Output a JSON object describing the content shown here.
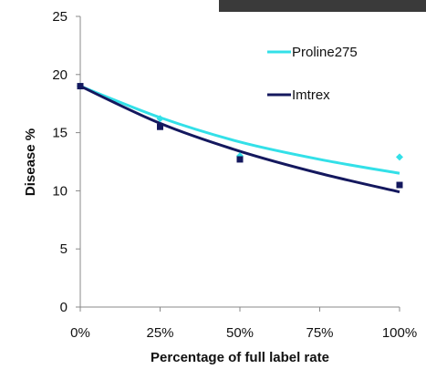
{
  "chart_data": {
    "type": "scatter",
    "title": "",
    "xlabel": "Percentage of full label rate",
    "ylabel": "Disease %",
    "x_categories": [
      "0%",
      "25%",
      "50%",
      "75%",
      "100%"
    ],
    "y_ticks": [
      0,
      5,
      10,
      15,
      20,
      25
    ],
    "ylim": [
      0,
      25
    ],
    "legend_position": "top-right",
    "grid": false,
    "series": [
      {
        "name": "Proline275",
        "color": "#33e0e8",
        "marker": "diamond",
        "points": [
          {
            "x": 0,
            "y": 19.0
          },
          {
            "x": 25,
            "y": 16.2
          },
          {
            "x": 50,
            "y": 13.0
          },
          {
            "x": 100,
            "y": 12.9
          }
        ],
        "trendline": [
          {
            "x": 0,
            "y": 19.0
          },
          {
            "x": 25,
            "y": 16.3
          },
          {
            "x": 50,
            "y": 14.2
          },
          {
            "x": 75,
            "y": 12.7
          },
          {
            "x": 100,
            "y": 11.5
          }
        ]
      },
      {
        "name": "Imtrex",
        "color": "#14185e",
        "marker": "square",
        "points": [
          {
            "x": 0,
            "y": 19.0
          },
          {
            "x": 25,
            "y": 15.5
          },
          {
            "x": 50,
            "y": 12.7
          },
          {
            "x": 100,
            "y": 10.5
          }
        ],
        "trendline": [
          {
            "x": 0,
            "y": 19.0
          },
          {
            "x": 25,
            "y": 15.8
          },
          {
            "x": 50,
            "y": 13.4
          },
          {
            "x": 75,
            "y": 11.5
          },
          {
            "x": 100,
            "y": 9.9
          }
        ]
      }
    ]
  }
}
